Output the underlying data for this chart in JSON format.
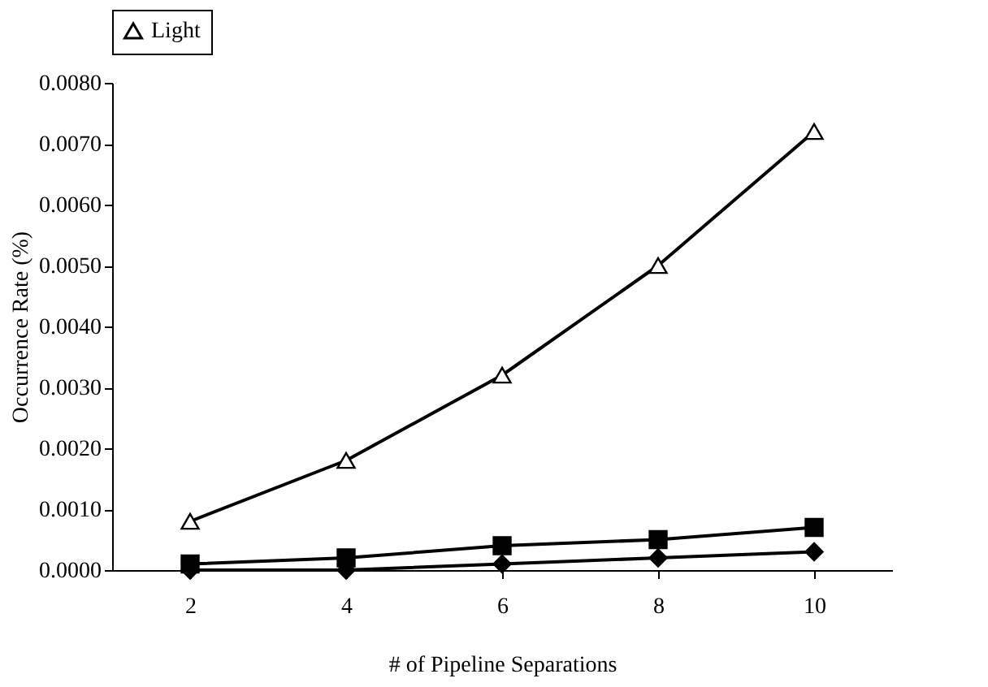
{
  "chart_data": {
    "type": "line",
    "xlabel": "# of Pipeline Separations",
    "ylabel": "Occurrence Rate (%)",
    "categories": [
      "2",
      "4",
      "6",
      "8",
      "10"
    ],
    "series": [
      {
        "color": "#000000",
        "marker": "diamond",
        "values": [
          0.0,
          0.0,
          0.0001,
          0.0002,
          0.0003
        ]
      },
      {
        "color": "#000000",
        "marker": "square",
        "values": [
          0.0001,
          0.0002,
          0.0004,
          0.0005,
          0.0007
        ]
      },
      {
        "name": "Light",
        "color": "#000000",
        "marker": "triangle",
        "values": [
          0.0008,
          0.0018,
          0.0032,
          0.005,
          0.0072
        ]
      }
    ],
    "ylim": [
      0,
      0.008
    ],
    "yticks": [
      {
        "value": 0,
        "label": "0.0000"
      },
      {
        "value": 0.001,
        "label": "0.0010"
      },
      {
        "value": 0.002,
        "label": "0.0020"
      },
      {
        "value": 0.003,
        "label": "0.0030"
      },
      {
        "value": 0.004,
        "label": "0.0040"
      },
      {
        "value": 0.005,
        "label": "0.0050"
      },
      {
        "value": 0.006,
        "label": "0.0060"
      },
      {
        "value": 0.007,
        "label": "0.0070"
      },
      {
        "value": 0.008,
        "label": "0.0080"
      }
    ],
    "grid": false,
    "legend": "top"
  }
}
